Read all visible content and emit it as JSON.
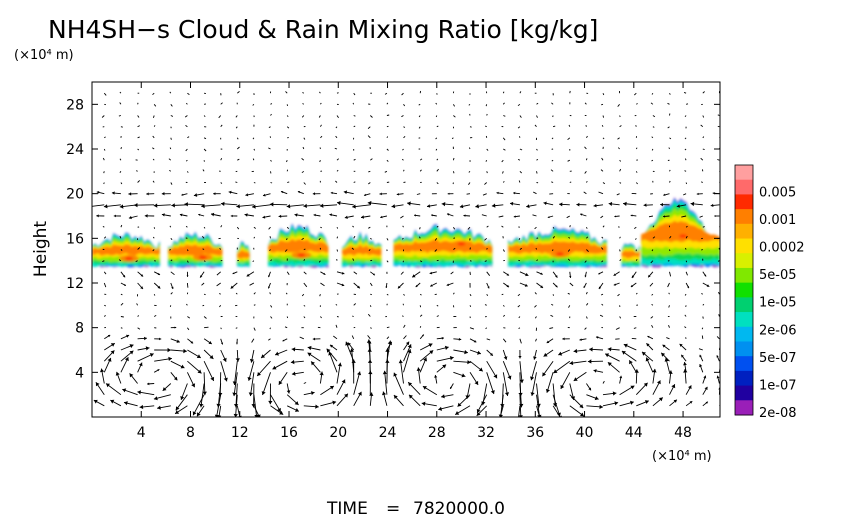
{
  "chart_data": {
    "type": "heatmap",
    "title": "NH4SH−s Cloud & Rain Mixing Ratio [kg/kg]",
    "ylabel": "Height",
    "x_unit": "(×10⁴ m)",
    "y_unit": "(×10⁴ m)",
    "xlim": [
      0,
      51
    ],
    "ylim": [
      0,
      30
    ],
    "x_ticks": [
      4,
      8,
      12,
      16,
      20,
      24,
      28,
      32,
      36,
      40,
      44,
      48
    ],
    "y_ticks": [
      4,
      8,
      12,
      16,
      20,
      24,
      28
    ],
    "time_label": "TIME",
    "time_value": "7820000.0",
    "colorbar": {
      "labels": [
        "0.005",
        "0.001",
        "0.0002",
        "5e-05",
        "1e-05",
        "2e-06",
        "5e-07",
        "1e-07",
        "2e-08"
      ],
      "colors": [
        "#ff9f9f",
        "#ff6a6a",
        "#ff2a00",
        "#ff7f00",
        "#ffb000",
        "#ffe000",
        "#d8f000",
        "#80e800",
        "#10e000",
        "#00d070",
        "#00e0c0",
        "#00b8f0",
        "#0090f0",
        "#0050f0",
        "#0020c0",
        "#2000a0",
        "#9a1fb8"
      ]
    },
    "cloud_layer": {
      "base_height": 13.5,
      "top_height": 17,
      "max_top_height": 19.5,
      "max_top_x": 47.5
    },
    "wind_vectors": true
  }
}
